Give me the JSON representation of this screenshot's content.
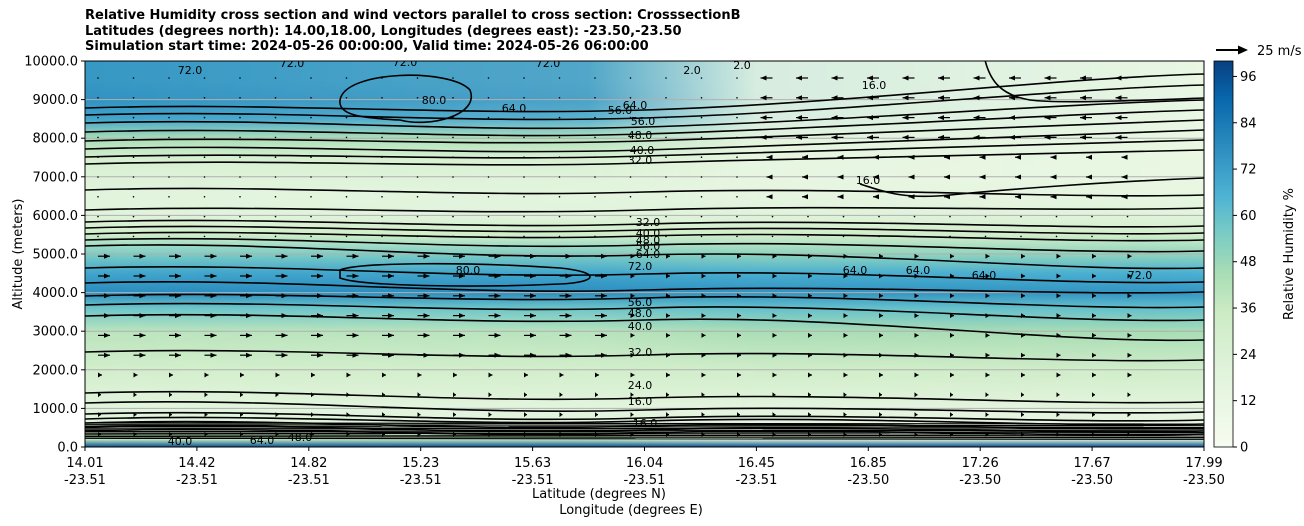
{
  "title": {
    "line1": "Relative Humidity cross section and wind vectors parallel to cross section: CrosssectionB",
    "line2": "Latitudes (degrees north): 14.00,18.00, Longitudes (degrees east): -23.50,-23.50",
    "line3": "Simulation start time: 2024-05-26 00:00:00, Valid time: 2024-05-26 06:00:00"
  },
  "quiver_key": "25 m/s",
  "colors": {
    "low": "#f7fcf0",
    "mid": "#7bccc4",
    "high": "#084081"
  },
  "chart_data": {
    "type": "heatmap",
    "variable": "Relative Humidity",
    "xlabel_lat": "Latitude (degrees N)",
    "xlabel_lon": "Longitude (degrees E)",
    "ylabel": "Altitude (meters)",
    "ylim": [
      0,
      10000
    ],
    "grid": "horizontal",
    "legend": "colorbar-right",
    "x_ticks": [
      {
        "lat": "14.01",
        "lon": "-23.51"
      },
      {
        "lat": "14.42",
        "lon": "-23.51"
      },
      {
        "lat": "14.82",
        "lon": "-23.51"
      },
      {
        "lat": "15.23",
        "lon": "-23.51"
      },
      {
        "lat": "15.63",
        "lon": "-23.51"
      },
      {
        "lat": "16.04",
        "lon": "-23.51"
      },
      {
        "lat": "16.45",
        "lon": "-23.51"
      },
      {
        "lat": "16.85",
        "lon": "-23.50"
      },
      {
        "lat": "17.26",
        "lon": "-23.50"
      },
      {
        "lat": "17.67",
        "lon": "-23.50"
      },
      {
        "lat": "17.99",
        "lon": "-23.50"
      }
    ],
    "y_ticks": [
      "0.0",
      "1000.0",
      "2000.0",
      "3000.0",
      "4000.0",
      "5000.0",
      "6000.0",
      "7000.0",
      "8000.0",
      "9000.0",
      "10000.0"
    ],
    "colorbar": {
      "label": "Relative Humidity %",
      "range": [
        0,
        100
      ],
      "ticks": [
        "0",
        "12",
        "24",
        "36",
        "48",
        "60",
        "72",
        "84",
        "96"
      ]
    },
    "contour_labels": [
      "72.0",
      "72.0",
      "72.0",
      "72.0",
      "2.0",
      "2.0",
      "16.0",
      "80.0",
      "64.0",
      "64.0",
      "56.0",
      "56.0",
      "48.0",
      "40.0",
      "32.0",
      "16.0",
      "32.0",
      "40.0",
      "48.0",
      "56.0",
      "64.0",
      "72.0",
      "80.0",
      "64.0",
      "64.0",
      "64.0",
      "72.0",
      "56.0",
      "48.0",
      "40.0",
      "32.0",
      "24.0",
      "16.0",
      "16.0",
      "64.0",
      "48.0",
      "40.0"
    ],
    "rh_profile_left": {
      "altitude": [
        0,
        200,
        500,
        1000,
        2000,
        3000,
        3600,
        4000,
        4500,
        5000,
        5500,
        6000,
        6500,
        7000,
        7500,
        8000,
        8500,
        9000,
        9500,
        10000
      ],
      "rh": [
        96,
        40,
        20,
        18,
        30,
        40,
        58,
        78,
        70,
        55,
        32,
        20,
        18,
        22,
        28,
        45,
        70,
        76,
        74,
        74
      ]
    },
    "rh_profile_right": {
      "altitude": [
        0,
        200,
        500,
        1000,
        2000,
        3000,
        3600,
        4000,
        4500,
        5000,
        5500,
        6000,
        6500,
        7000,
        7500,
        8000,
        8500,
        9000,
        9500,
        10000
      ],
      "rh": [
        96,
        20,
        15,
        16,
        32,
        45,
        60,
        75,
        66,
        50,
        30,
        20,
        14,
        12,
        12,
        12,
        12,
        12,
        12,
        12
      ]
    }
  }
}
